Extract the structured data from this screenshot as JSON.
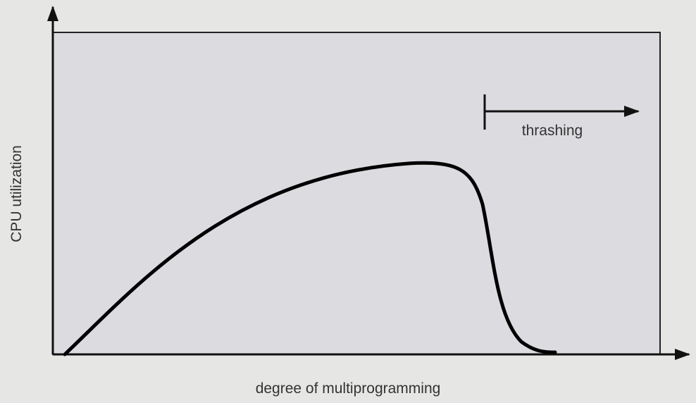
{
  "diagram": {
    "y_axis_label": "CPU utilization",
    "x_axis_label": "degree of multiprogramming",
    "annotation": "thrashing"
  }
}
